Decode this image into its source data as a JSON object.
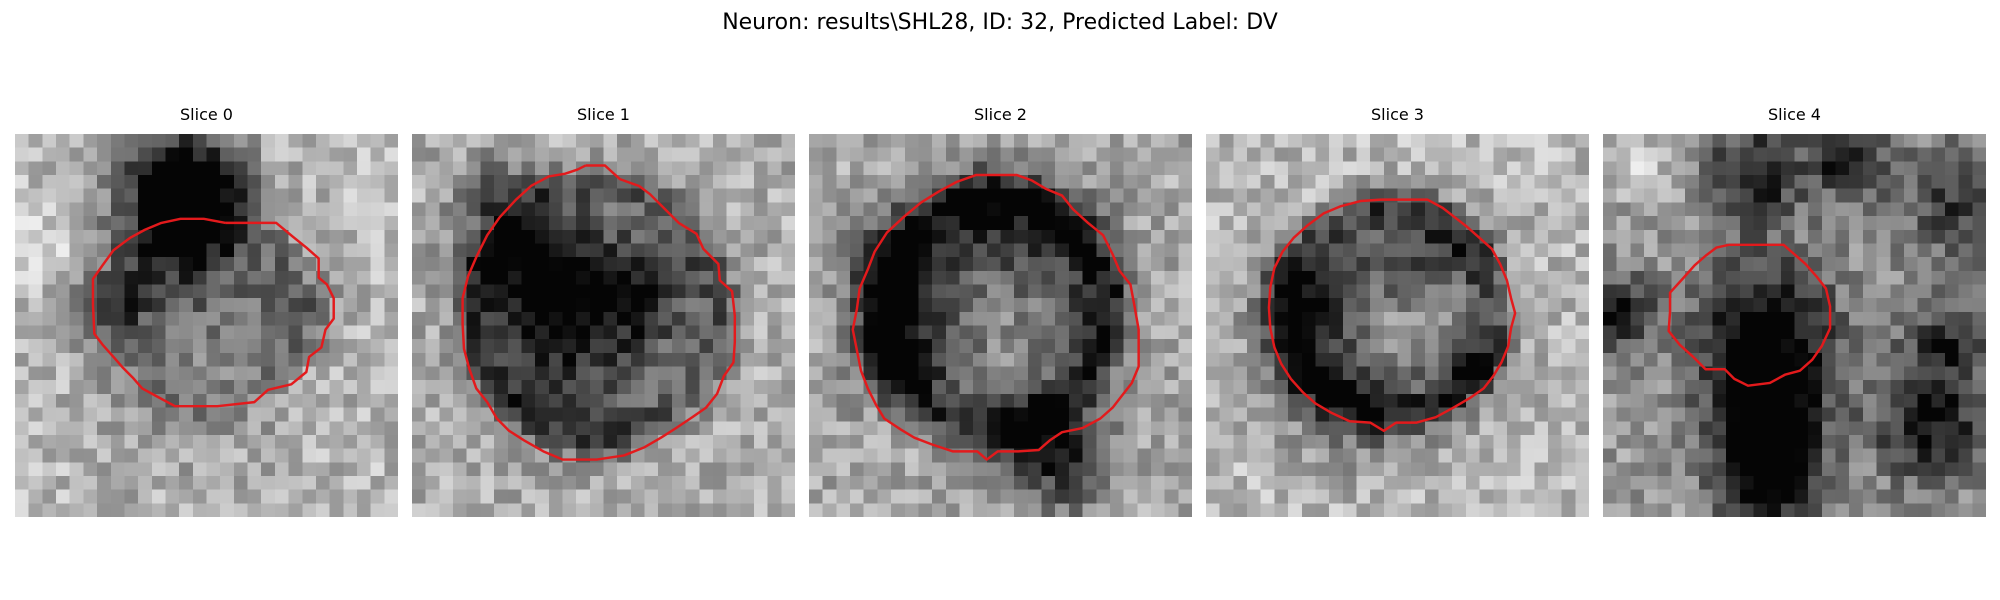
{
  "figure": {
    "suptitle": "Neuron: results\\SHL28, ID: 32, Predicted Label: DV"
  },
  "colormap": "gray",
  "contour_color": "#e31a1c",
  "panels": [
    {
      "title": "Slice 0",
      "description": "grayscale micrograph patch; dark blob at top-center, light textured surround",
      "contour": [
        [
          15.4,
          6.5
        ],
        [
          19.1,
          6.5
        ],
        [
          20.3,
          7.5
        ],
        [
          21.3,
          8.3
        ],
        [
          22.2,
          9.1
        ],
        [
          22.2,
          10.5
        ],
        [
          22.8,
          11.0
        ],
        [
          23.3,
          12.0
        ],
        [
          23.3,
          13.5
        ],
        [
          22.7,
          14.3
        ],
        [
          22.4,
          15.6
        ],
        [
          21.5,
          16.3
        ],
        [
          21.3,
          17.4
        ],
        [
          20.2,
          18.3
        ],
        [
          18.5,
          18.7
        ],
        [
          17.5,
          19.6
        ],
        [
          14.8,
          19.9
        ],
        [
          11.7,
          19.9
        ],
        [
          10.4,
          19.2
        ],
        [
          9.3,
          18.6
        ],
        [
          8.6,
          17.8
        ],
        [
          7.9,
          17.1
        ],
        [
          7.2,
          16.3
        ],
        [
          6.4,
          15.4
        ],
        [
          5.8,
          14.6
        ],
        [
          5.7,
          12.5
        ],
        [
          5.7,
          10.6
        ],
        [
          6.4,
          9.6
        ],
        [
          7.2,
          8.5
        ],
        [
          8.4,
          7.6
        ],
        [
          9.5,
          7.0
        ],
        [
          10.7,
          6.5
        ],
        [
          12.1,
          6.2
        ],
        [
          13.8,
          6.2
        ],
        [
          15.4,
          6.5
        ]
      ]
    },
    {
      "title": "Slice 1",
      "description": "grayscale micrograph patch; large dark ring-shaped cell body",
      "contour": [
        [
          12.7,
          2.3
        ],
        [
          14.1,
          2.3
        ],
        [
          15.2,
          3.3
        ],
        [
          16.6,
          3.8
        ],
        [
          17.4,
          4.4
        ],
        [
          18.5,
          5.5
        ],
        [
          19.5,
          6.5
        ],
        [
          20.8,
          7.3
        ],
        [
          21.3,
          8.4
        ],
        [
          22.4,
          9.5
        ],
        [
          22.5,
          10.7
        ],
        [
          23.4,
          11.5
        ],
        [
          23.6,
          13.3
        ],
        [
          23.6,
          15.2
        ],
        [
          23.5,
          16.7
        ],
        [
          22.8,
          17.7
        ],
        [
          22.3,
          19.0
        ],
        [
          21.5,
          20.0
        ],
        [
          20.5,
          20.7
        ],
        [
          19.3,
          21.5
        ],
        [
          18.2,
          22.2
        ],
        [
          17.0,
          22.9
        ],
        [
          15.5,
          23.5
        ],
        [
          13.5,
          23.8
        ],
        [
          11.0,
          23.8
        ],
        [
          9.6,
          23.2
        ],
        [
          8.2,
          22.4
        ],
        [
          7.1,
          21.7
        ],
        [
          6.2,
          20.8
        ],
        [
          5.5,
          19.6
        ],
        [
          4.7,
          18.6
        ],
        [
          4.2,
          17.2
        ],
        [
          3.8,
          15.7
        ],
        [
          3.7,
          13.9
        ],
        [
          3.7,
          12.0
        ],
        [
          4.1,
          10.4
        ],
        [
          4.7,
          9.0
        ],
        [
          5.5,
          7.4
        ],
        [
          6.4,
          6.1
        ],
        [
          7.6,
          4.8
        ],
        [
          8.7,
          3.8
        ],
        [
          10.0,
          3.1
        ],
        [
          11.2,
          2.9
        ],
        [
          12.1,
          2.6
        ],
        [
          12.7,
          2.3
        ]
      ]
    },
    {
      "title": "Slice 2",
      "description": "grayscale micrograph patch; dark ring with lighter interior",
      "contour": [
        [
          13.3,
          3.0
        ],
        [
          15.2,
          3.0
        ],
        [
          16.3,
          3.4
        ],
        [
          17.3,
          4.0
        ],
        [
          18.5,
          4.5
        ],
        [
          19.3,
          5.5
        ],
        [
          20.4,
          6.5
        ],
        [
          21.5,
          7.4
        ],
        [
          22.2,
          8.8
        ],
        [
          22.7,
          10.0
        ],
        [
          23.5,
          11.0
        ],
        [
          23.8,
          12.6
        ],
        [
          24.1,
          14.3
        ],
        [
          24.1,
          15.8
        ],
        [
          24.1,
          17.0
        ],
        [
          23.6,
          18.2
        ],
        [
          22.9,
          19.1
        ],
        [
          22.2,
          20.0
        ],
        [
          21.3,
          20.8
        ],
        [
          20.0,
          21.5
        ],
        [
          18.5,
          21.8
        ],
        [
          17.6,
          22.4
        ],
        [
          16.8,
          23.1
        ],
        [
          15.3,
          23.2
        ],
        [
          13.8,
          23.2
        ],
        [
          13.0,
          23.8
        ],
        [
          12.3,
          23.2
        ],
        [
          10.5,
          23.2
        ],
        [
          9.0,
          22.7
        ],
        [
          7.7,
          22.2
        ],
        [
          6.7,
          21.6
        ],
        [
          5.5,
          20.8
        ],
        [
          4.9,
          19.8
        ],
        [
          4.3,
          18.6
        ],
        [
          3.8,
          17.3
        ],
        [
          3.5,
          15.8
        ],
        [
          3.2,
          14.3
        ],
        [
          3.5,
          12.8
        ],
        [
          3.7,
          11.3
        ],
        [
          4.3,
          9.9
        ],
        [
          4.8,
          8.6
        ],
        [
          5.7,
          7.2
        ],
        [
          7.0,
          6.0
        ],
        [
          8.2,
          5.0
        ],
        [
          9.5,
          4.2
        ],
        [
          10.8,
          3.5
        ],
        [
          12.2,
          3.0
        ],
        [
          13.3,
          3.0
        ]
      ]
    },
    {
      "title": "Slice 3",
      "description": "grayscale micrograph patch; round dark-edged cell with mottled interior",
      "contour": [
        [
          12.8,
          4.8
        ],
        [
          16.2,
          4.8
        ],
        [
          17.3,
          5.4
        ],
        [
          18.2,
          6.1
        ],
        [
          19.1,
          6.8
        ],
        [
          20.0,
          7.6
        ],
        [
          20.9,
          8.4
        ],
        [
          21.5,
          9.5
        ],
        [
          22.0,
          10.7
        ],
        [
          22.3,
          12.0
        ],
        [
          22.6,
          13.1
        ],
        [
          22.3,
          14.2
        ],
        [
          22.1,
          15.5
        ],
        [
          21.6,
          16.7
        ],
        [
          21.0,
          17.7
        ],
        [
          20.3,
          18.6
        ],
        [
          19.3,
          19.3
        ],
        [
          18.1,
          20.0
        ],
        [
          16.8,
          20.7
        ],
        [
          15.4,
          21.1
        ],
        [
          13.9,
          21.1
        ],
        [
          13.0,
          21.7
        ],
        [
          12.0,
          21.1
        ],
        [
          10.5,
          21.0
        ],
        [
          9.2,
          20.4
        ],
        [
          8.0,
          19.7
        ],
        [
          7.1,
          18.9
        ],
        [
          6.2,
          17.9
        ],
        [
          5.5,
          16.8
        ],
        [
          5.0,
          15.6
        ],
        [
          4.7,
          14.2
        ],
        [
          4.6,
          12.7
        ],
        [
          4.7,
          11.2
        ],
        [
          5.0,
          9.8
        ],
        [
          5.6,
          8.6
        ],
        [
          6.4,
          7.6
        ],
        [
          7.4,
          6.7
        ],
        [
          8.6,
          5.8
        ],
        [
          9.8,
          5.3
        ],
        [
          11.3,
          4.9
        ],
        [
          12.8,
          4.8
        ]
      ]
    },
    {
      "title": "Slice 4",
      "description": "grayscale micrograph patch; dark vertical process crossing a smaller contoured region",
      "contour": [
        [
          9.2,
          8.1
        ],
        [
          13.2,
          8.1
        ],
        [
          14.0,
          8.8
        ],
        [
          14.8,
          9.5
        ],
        [
          15.6,
          10.4
        ],
        [
          16.3,
          11.3
        ],
        [
          16.6,
          12.6
        ],
        [
          16.6,
          14.2
        ],
        [
          16.0,
          15.5
        ],
        [
          15.3,
          16.5
        ],
        [
          14.4,
          17.3
        ],
        [
          13.3,
          17.6
        ],
        [
          12.2,
          18.2
        ],
        [
          10.6,
          18.4
        ],
        [
          9.6,
          17.9
        ],
        [
          8.9,
          17.2
        ],
        [
          7.5,
          17.2
        ],
        [
          6.6,
          16.3
        ],
        [
          5.6,
          15.4
        ],
        [
          4.8,
          14.4
        ],
        [
          4.9,
          13.0
        ],
        [
          4.9,
          11.6
        ],
        [
          5.9,
          10.5
        ],
        [
          6.7,
          9.6
        ],
        [
          7.5,
          8.9
        ],
        [
          8.3,
          8.3
        ],
        [
          9.2,
          8.1
        ]
      ]
    }
  ]
}
